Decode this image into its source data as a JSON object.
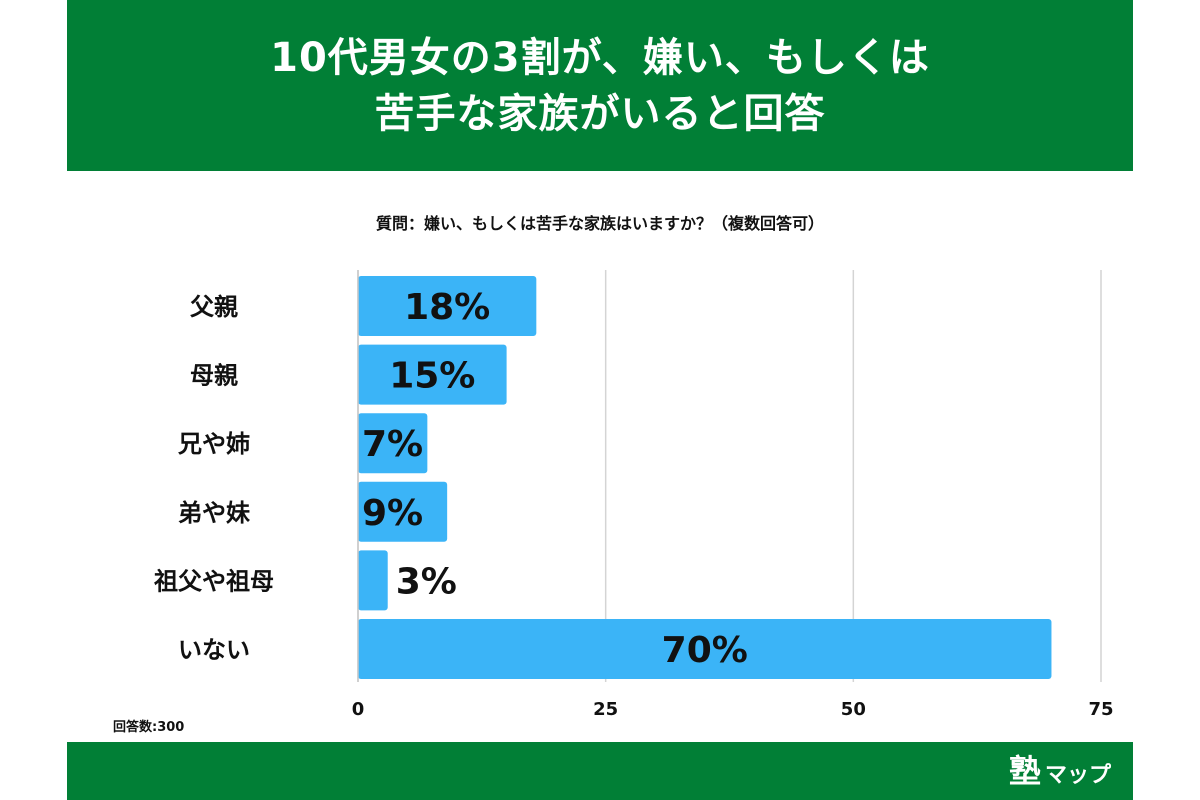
{
  "header": {
    "title_line1": "10代男女の3割が、嫌い、もしくは",
    "title_line2": "苦手な家族がいると回答"
  },
  "question": "質問：嫌い、もしくは苦手な家族はいますか？（複数回答可）",
  "respondents": "回答数:300",
  "brand": {
    "kanji": "塾",
    "kana": "マップ"
  },
  "colors": {
    "header_green": "#017f36",
    "bar_blue": "#3bb4f7"
  },
  "chart_data": {
    "type": "bar",
    "orientation": "horizontal",
    "categories": [
      "父親",
      "母親",
      "兄や姉",
      "弟や妹",
      "祖父や祖母",
      "いない"
    ],
    "values": [
      18,
      15,
      7,
      9,
      3,
      70
    ],
    "value_labels": [
      "18%",
      "15%",
      "7%",
      "9%",
      "3%",
      "70%"
    ],
    "xlim": [
      0,
      75
    ],
    "xticks": [
      0,
      25,
      50,
      75
    ],
    "grid": true,
    "legend": "none"
  }
}
